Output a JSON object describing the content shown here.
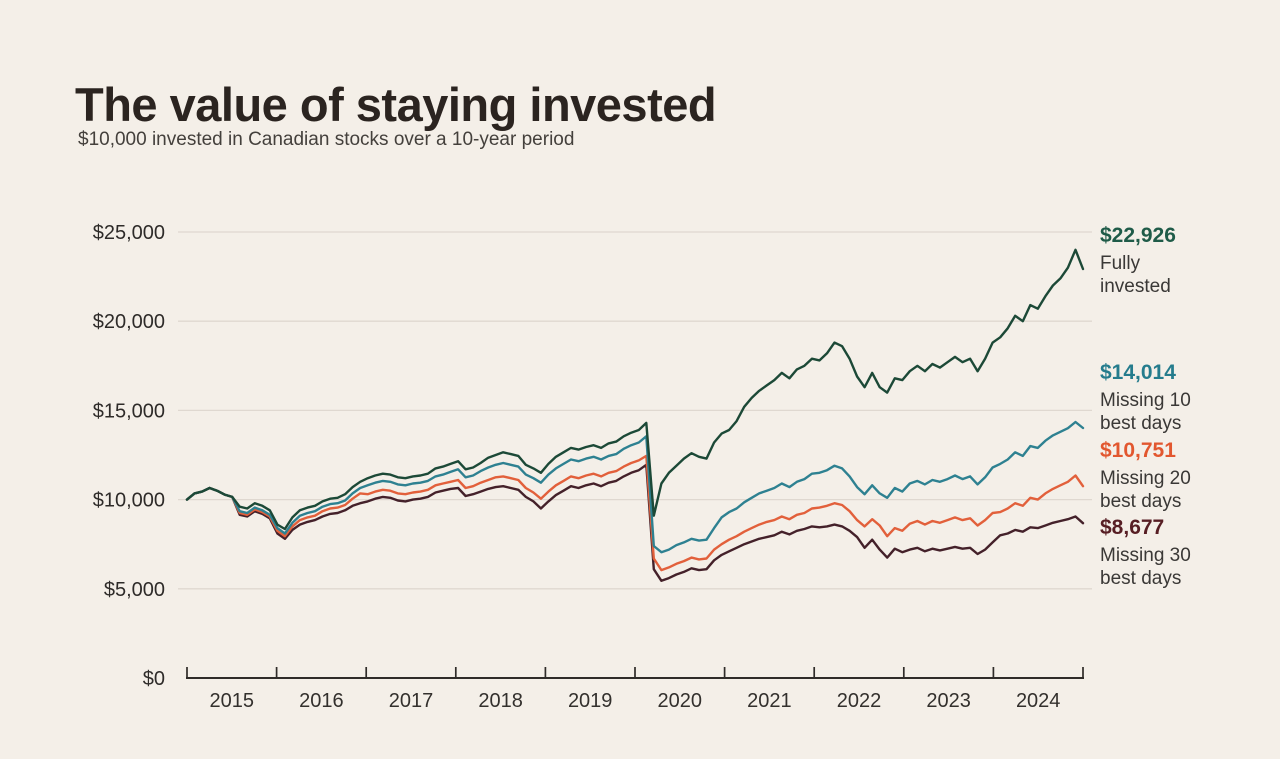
{
  "page": {
    "background_color": "#f4efe8"
  },
  "header": {
    "title": "The value of staying invested",
    "subtitle": "$10,000 invested in Canadian stocks over a 10-year period"
  },
  "chart_data": {
    "type": "line",
    "title": "The value of staying invested",
    "subtitle": "$10,000 invested in Canadian stocks over a 10-year period",
    "grid": true,
    "legend_position": "right-end-labels",
    "x_axis": {
      "start_year": 2015,
      "end_year": 2025,
      "tick_years": [
        "2015",
        "2016",
        "2017",
        "2018",
        "2019",
        "2020",
        "2021",
        "2022",
        "2023",
        "2024"
      ]
    },
    "y_axis": {
      "min": 0,
      "max": 25000,
      "grid_interval": 5000,
      "tick_labels": [
        "$0",
        "$5,000",
        "$10,000",
        "$15,000",
        "$20,000",
        "$25,000"
      ]
    },
    "axis_colors": {
      "axis": "#2f2b28",
      "gridline": "#dfd8d0",
      "tick_text": "#33302d"
    },
    "series": [
      {
        "id": "fully-invested",
        "name": "Fully invested",
        "end_value": 22926,
        "end_value_label": "$22,926",
        "annotation": [
          "Fully",
          "invested"
        ],
        "color": "#1c4937",
        "label_color": "#1f5b48",
        "sampling": "monthly",
        "monthly_values": [
          10000,
          10350,
          10450,
          10650,
          10500,
          10280,
          10150,
          9600,
          9500,
          9800,
          9650,
          9400,
          8600,
          8350,
          9000,
          9400,
          9550,
          9650,
          9900,
          10050,
          10100,
          10300,
          10700,
          11000,
          11200,
          11350,
          11450,
          11400,
          11250,
          11200,
          11300,
          11350,
          11450,
          11750,
          11850,
          12000,
          12150,
          11700,
          11800,
          12050,
          12350,
          12500,
          12650,
          12550,
          12450,
          11950,
          11750,
          11500,
          12000,
          12400,
          12650,
          12900,
          12800,
          12950,
          13050,
          12900,
          13150,
          13250,
          13550,
          13750,
          13900,
          14300,
          9100,
          10900,
          11500,
          11900,
          12300,
          12600,
          12400,
          12300,
          13200,
          13700,
          13900,
          14400,
          15200,
          15700,
          16100,
          16400,
          16700,
          17100,
          16800,
          17300,
          17500,
          17900,
          17800,
          18200,
          18800,
          18600,
          17900,
          16900,
          16300,
          17100,
          16300,
          16000,
          16800,
          16700,
          17200,
          17500,
          17200,
          17600,
          17400,
          17700,
          18000,
          17700,
          17900,
          17200,
          17900,
          18800,
          19100,
          19600,
          20300,
          20000,
          20900,
          20700,
          21400,
          22000,
          22400,
          23000,
          24000,
          22926
        ]
      },
      {
        "id": "missing-10",
        "name": "Missing 10 best days",
        "end_value": 14014,
        "end_value_label": "$14,014",
        "annotation": [
          "Missing 10",
          "best days"
        ],
        "color": "#2e8191",
        "label_color": "#257c8d",
        "sampling": "monthly",
        "monthly_values": [
          10000,
          10350,
          10450,
          10650,
          10500,
          10280,
          10150,
          9350,
          9250,
          9550,
          9400,
          9150,
          8400,
          8100,
          8700,
          9100,
          9250,
          9350,
          9600,
          9750,
          9800,
          9950,
          10350,
          10650,
          10800,
          10950,
          11050,
          11000,
          10850,
          10800,
          10900,
          10950,
          11050,
          11300,
          11400,
          11550,
          11700,
          11250,
          11350,
          11600,
          11800,
          11950,
          12050,
          11950,
          11850,
          11400,
          11200,
          10950,
          11400,
          11750,
          12000,
          12250,
          12150,
          12300,
          12400,
          12250,
          12450,
          12550,
          12850,
          13050,
          13200,
          13550,
          7400,
          7050,
          7200,
          7450,
          7600,
          7800,
          7700,
          7750,
          8400,
          9000,
          9300,
          9500,
          9850,
          10100,
          10350,
          10500,
          10650,
          10900,
          10700,
          11000,
          11150,
          11450,
          11500,
          11650,
          11900,
          11750,
          11300,
          10700,
          10300,
          10800,
          10350,
          10100,
          10650,
          10450,
          10900,
          11050,
          10850,
          11100,
          11000,
          11150,
          11350,
          11150,
          11300,
          10850,
          11250,
          11800,
          12000,
          12250,
          12650,
          12450,
          13000,
          12900,
          13300,
          13600,
          13800,
          14000,
          14350,
          14014
        ]
      },
      {
        "id": "missing-20",
        "name": "Missing 20 best days",
        "end_value": 10751,
        "end_value_label": "$10,751",
        "annotation": [
          "Missing 20",
          "best days"
        ],
        "color": "#e2603b",
        "label_color": "#e2572f",
        "sampling": "monthly",
        "monthly_values": [
          10000,
          10350,
          10450,
          10650,
          10500,
          10280,
          10150,
          9250,
          9150,
          9450,
          9300,
          9050,
          8250,
          7950,
          8500,
          8850,
          9000,
          9100,
          9350,
          9500,
          9550,
          9700,
          10050,
          10350,
          10300,
          10450,
          10550,
          10500,
          10350,
          10300,
          10400,
          10450,
          10550,
          10800,
          10900,
          11000,
          11100,
          10650,
          10750,
          10950,
          11100,
          11250,
          11300,
          11200,
          11100,
          10650,
          10400,
          10050,
          10450,
          10800,
          11050,
          11300,
          11200,
          11350,
          11450,
          11300,
          11500,
          11600,
          11850,
          12050,
          12200,
          12450,
          6700,
          6050,
          6200,
          6400,
          6550,
          6750,
          6650,
          6700,
          7200,
          7500,
          7750,
          7950,
          8200,
          8400,
          8600,
          8750,
          8850,
          9050,
          8900,
          9150,
          9250,
          9500,
          9550,
          9650,
          9800,
          9700,
          9350,
          8850,
          8500,
          8900,
          8550,
          7950,
          8400,
          8250,
          8650,
          8800,
          8600,
          8800,
          8700,
          8850,
          9000,
          8850,
          8950,
          8550,
          8850,
          9250,
          9300,
          9500,
          9800,
          9650,
          10100,
          10000,
          10350,
          10600,
          10800,
          11000,
          11350,
          10751
        ]
      },
      {
        "id": "missing-30",
        "name": "Missing 30 best days",
        "end_value": 8677,
        "end_value_label": "$8,677",
        "annotation": [
          "Missing 30",
          "best days"
        ],
        "color": "#44212a",
        "label_color": "#571e24",
        "sampling": "monthly",
        "monthly_values": [
          10000,
          10350,
          10450,
          10650,
          10500,
          10280,
          10150,
          9150,
          9050,
          9350,
          9200,
          8950,
          8100,
          7800,
          8300,
          8600,
          8750,
          8850,
          9050,
          9200,
          9250,
          9400,
          9650,
          9800,
          9900,
          10050,
          10150,
          10100,
          9950,
          9900,
          10000,
          10050,
          10150,
          10400,
          10500,
          10600,
          10650,
          10200,
          10300,
          10450,
          10600,
          10700,
          10750,
          10650,
          10550,
          10150,
          9900,
          9500,
          9900,
          10250,
          10500,
          10750,
          10650,
          10800,
          10900,
          10750,
          10950,
          11050,
          11300,
          11500,
          11650,
          11950,
          6100,
          5450,
          5600,
          5800,
          5950,
          6150,
          6050,
          6100,
          6600,
          6900,
          7100,
          7300,
          7500,
          7650,
          7800,
          7900,
          8000,
          8200,
          8050,
          8250,
          8350,
          8500,
          8450,
          8500,
          8600,
          8500,
          8250,
          7900,
          7300,
          7750,
          7200,
          6750,
          7250,
          7050,
          7200,
          7300,
          7100,
          7250,
          7150,
          7250,
          7350,
          7250,
          7300,
          6950,
          7200,
          7600,
          8000,
          8100,
          8300,
          8200,
          8450,
          8400,
          8550,
          8700,
          8800,
          8900,
          9050,
          8677
        ]
      }
    ]
  }
}
